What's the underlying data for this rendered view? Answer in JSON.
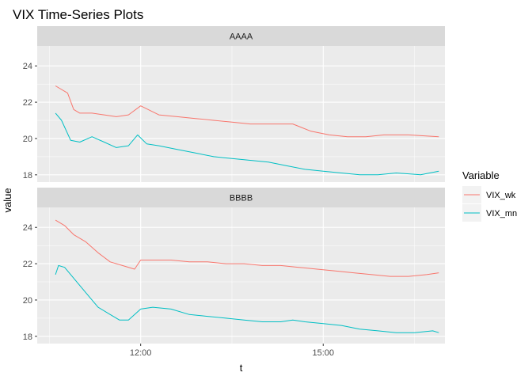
{
  "chart_data": {
    "type": "line",
    "title": "VIX Time-Series Plots",
    "xlabel": "t",
    "ylabel": "value",
    "x_ticks": [
      "12:00",
      "15:00"
    ],
    "x_range_hours": [
      10.3,
      17.0
    ],
    "y_ticks": [
      18,
      20,
      22,
      24
    ],
    "ylim": [
      17.6,
      25.1
    ],
    "legend": {
      "title": "Variable",
      "position": "right",
      "entries": [
        {
          "name": "VIX_wk",
          "color": "#F8766D"
        },
        {
          "name": "VIX_mn",
          "color": "#00BFC4"
        }
      ]
    },
    "panels": [
      {
        "label": "AAAA",
        "series": [
          {
            "name": "VIX_wk",
            "color": "#F8766D",
            "t": [
              10.6,
              10.8,
              10.9,
              11.0,
              11.2,
              11.4,
              11.6,
              11.8,
              12.0,
              12.3,
              12.6,
              12.9,
              13.2,
              13.5,
              13.8,
              14.0,
              14.2,
              14.5,
              14.8,
              15.1,
              15.4,
              15.7,
              16.0,
              16.4,
              16.9
            ],
            "values": [
              22.9,
              22.5,
              21.6,
              21.4,
              21.4,
              21.3,
              21.2,
              21.3,
              21.8,
              21.3,
              21.2,
              21.1,
              21.0,
              20.9,
              20.8,
              20.8,
              20.8,
              20.8,
              20.4,
              20.2,
              20.1,
              20.1,
              20.2,
              20.2,
              20.1
            ]
          },
          {
            "name": "VIX_mn",
            "color": "#00BFC4",
            "t": [
              10.6,
              10.7,
              10.85,
              11.0,
              11.2,
              11.4,
              11.6,
              11.8,
              11.95,
              12.1,
              12.3,
              12.6,
              12.9,
              13.2,
              13.5,
              13.8,
              14.1,
              14.4,
              14.7,
              15.0,
              15.3,
              15.6,
              15.9,
              16.2,
              16.6,
              16.9
            ],
            "values": [
              21.4,
              21.0,
              19.9,
              19.8,
              20.1,
              19.8,
              19.5,
              19.6,
              20.2,
              19.7,
              19.6,
              19.4,
              19.2,
              19.0,
              18.9,
              18.8,
              18.7,
              18.5,
              18.3,
              18.2,
              18.1,
              18.0,
              18.0,
              18.1,
              18.0,
              18.2
            ]
          }
        ]
      },
      {
        "label": "BBBB",
        "series": [
          {
            "name": "VIX_wk",
            "color": "#F8766D",
            "t": [
              10.6,
              10.75,
              10.9,
              11.1,
              11.3,
              11.5,
              11.7,
              11.9,
              12.0,
              12.2,
              12.5,
              12.8,
              13.1,
              13.4,
              13.7,
              14.0,
              14.3,
              14.6,
              14.9,
              15.2,
              15.5,
              15.8,
              16.1,
              16.4,
              16.7,
              16.9
            ],
            "values": [
              24.4,
              24.1,
              23.6,
              23.2,
              22.6,
              22.1,
              21.9,
              21.7,
              22.2,
              22.2,
              22.2,
              22.1,
              22.1,
              22.0,
              22.0,
              21.9,
              21.9,
              21.8,
              21.7,
              21.6,
              21.5,
              21.4,
              21.3,
              21.3,
              21.4,
              21.5
            ]
          },
          {
            "name": "VIX_mn",
            "color": "#00BFC4",
            "t": [
              10.6,
              10.65,
              10.75,
              10.9,
              11.1,
              11.3,
              11.5,
              11.65,
              11.8,
              12.0,
              12.2,
              12.5,
              12.8,
              13.1,
              13.4,
              13.7,
              14.0,
              14.3,
              14.5,
              14.7,
              15.0,
              15.3,
              15.6,
              15.9,
              16.2,
              16.5,
              16.8,
              16.9
            ],
            "values": [
              21.4,
              21.9,
              21.8,
              21.2,
              20.4,
              19.6,
              19.2,
              18.9,
              18.9,
              19.5,
              19.6,
              19.5,
              19.2,
              19.1,
              19.0,
              18.9,
              18.8,
              18.8,
              18.9,
              18.8,
              18.7,
              18.6,
              18.4,
              18.3,
              18.2,
              18.2,
              18.3,
              18.2
            ]
          }
        ]
      }
    ]
  }
}
